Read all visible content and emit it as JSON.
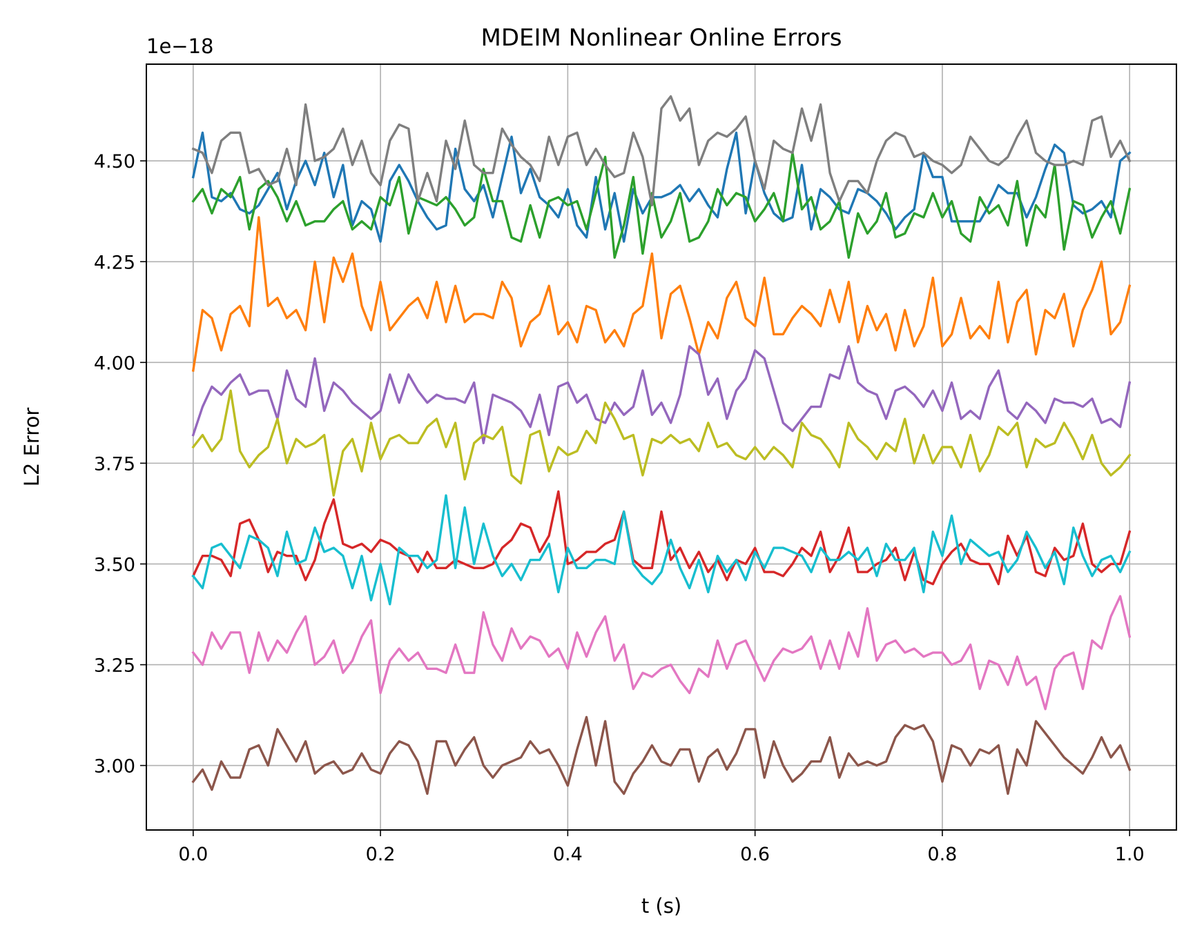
{
  "chart_data": {
    "type": "line",
    "title": "MDEIM Nonlinear Online Errors",
    "xlabel": "t (s)",
    "ylabel": "L2 Error",
    "y_offset_label": "1e−18",
    "xlim": [
      -0.05,
      1.05
    ],
    "ylim": [
      2.84,
      4.74
    ],
    "xticks": [
      0.0,
      0.2,
      0.4,
      0.6,
      0.8,
      1.0
    ],
    "xtick_labels": [
      "0.0",
      "0.2",
      "0.4",
      "0.6",
      "0.8",
      "1.0"
    ],
    "yticks": [
      3.0,
      3.25,
      3.5,
      3.75,
      4.0,
      4.25,
      4.5
    ],
    "ytick_labels": [
      "3.00",
      "3.25",
      "3.50",
      "3.75",
      "4.00",
      "4.25",
      "4.50"
    ],
    "grid": true,
    "x": [
      0.0,
      0.01,
      0.02,
      0.03,
      0.04,
      0.05,
      0.06,
      0.07,
      0.08,
      0.09,
      0.1,
      0.11,
      0.12,
      0.13,
      0.14,
      0.15,
      0.16,
      0.17,
      0.18,
      0.19,
      0.2,
      0.21,
      0.22,
      0.23,
      0.24,
      0.25,
      0.26,
      0.27,
      0.28,
      0.29,
      0.3,
      0.31,
      0.32,
      0.33,
      0.34,
      0.35,
      0.36,
      0.37,
      0.38,
      0.39,
      0.4,
      0.41,
      0.42,
      0.43,
      0.44,
      0.45,
      0.46,
      0.47,
      0.48,
      0.49,
      0.5,
      0.51,
      0.52,
      0.53,
      0.54,
      0.55,
      0.56,
      0.57,
      0.58,
      0.59,
      0.6,
      0.61,
      0.62,
      0.63,
      0.64,
      0.65,
      0.66,
      0.67,
      0.68,
      0.69,
      0.7,
      0.71,
      0.72,
      0.73,
      0.74,
      0.75,
      0.76,
      0.77,
      0.78,
      0.79,
      0.8,
      0.81,
      0.82,
      0.83,
      0.84,
      0.85,
      0.86,
      0.87,
      0.88,
      0.89,
      0.9,
      0.91,
      0.92,
      0.93,
      0.94,
      0.95,
      0.96,
      0.97,
      0.98,
      0.99,
      1.0
    ],
    "series": [
      {
        "color": "#1f77b4",
        "values": [
          4.46,
          4.57,
          4.41,
          4.4,
          4.42,
          4.38,
          4.37,
          4.39,
          4.43,
          4.47,
          4.38,
          4.45,
          4.5,
          4.44,
          4.52,
          4.41,
          4.49,
          4.34,
          4.4,
          4.38,
          4.3,
          4.45,
          4.49,
          4.45,
          4.4,
          4.36,
          4.33,
          4.34,
          4.53,
          4.43,
          4.4,
          4.44,
          4.36,
          4.46,
          4.56,
          4.42,
          4.48,
          4.41,
          4.39,
          4.36,
          4.43,
          4.34,
          4.31,
          4.46,
          4.33,
          4.42,
          4.3,
          4.43,
          4.37,
          4.41,
          4.41,
          4.42,
          4.44,
          4.4,
          4.43,
          4.39,
          4.36,
          4.48,
          4.57,
          4.37,
          4.5,
          4.42,
          4.37,
          4.35,
          4.36,
          4.49,
          4.33,
          4.43,
          4.41,
          4.38,
          4.37,
          4.43,
          4.42,
          4.4,
          4.37,
          4.33,
          4.36,
          4.38,
          4.52,
          4.46,
          4.46,
          4.35,
          4.35,
          4.35,
          4.35,
          4.39,
          4.44,
          4.42,
          4.42,
          4.36,
          4.41,
          4.48,
          4.54,
          4.52,
          4.39,
          4.37,
          4.38,
          4.4,
          4.36,
          4.5,
          4.52
        ]
      },
      {
        "color": "#ff7f0e",
        "values": [
          3.98,
          4.13,
          4.11,
          4.03,
          4.12,
          4.14,
          4.09,
          4.36,
          4.14,
          4.16,
          4.11,
          4.13,
          4.08,
          4.25,
          4.1,
          4.26,
          4.2,
          4.27,
          4.14,
          4.08,
          4.2,
          4.08,
          4.11,
          4.14,
          4.16,
          4.11,
          4.2,
          4.1,
          4.19,
          4.1,
          4.12,
          4.12,
          4.11,
          4.2,
          4.16,
          4.04,
          4.1,
          4.12,
          4.19,
          4.07,
          4.1,
          4.05,
          4.14,
          4.13,
          4.05,
          4.08,
          4.04,
          4.12,
          4.14,
          4.27,
          4.06,
          4.17,
          4.19,
          4.11,
          4.02,
          4.1,
          4.06,
          4.16,
          4.2,
          4.11,
          4.09,
          4.21,
          4.07,
          4.07,
          4.11,
          4.14,
          4.12,
          4.09,
          4.18,
          4.1,
          4.2,
          4.05,
          4.14,
          4.08,
          4.12,
          4.03,
          4.13,
          4.04,
          4.09,
          4.21,
          4.04,
          4.07,
          4.16,
          4.06,
          4.09,
          4.06,
          4.2,
          4.05,
          4.15,
          4.18,
          4.02,
          4.13,
          4.11,
          4.17,
          4.04,
          4.13,
          4.18,
          4.25,
          4.07,
          4.1,
          4.19
        ]
      },
      {
        "color": "#2ca02c",
        "values": [
          4.4,
          4.43,
          4.37,
          4.43,
          4.41,
          4.46,
          4.33,
          4.43,
          4.45,
          4.41,
          4.35,
          4.4,
          4.34,
          4.35,
          4.35,
          4.38,
          4.4,
          4.33,
          4.35,
          4.33,
          4.41,
          4.39,
          4.46,
          4.32,
          4.41,
          4.4,
          4.39,
          4.41,
          4.38,
          4.34,
          4.36,
          4.48,
          4.4,
          4.4,
          4.31,
          4.3,
          4.39,
          4.31,
          4.4,
          4.41,
          4.39,
          4.4,
          4.33,
          4.42,
          4.51,
          4.26,
          4.34,
          4.46,
          4.27,
          4.42,
          4.31,
          4.35,
          4.42,
          4.3,
          4.31,
          4.35,
          4.43,
          4.39,
          4.42,
          4.41,
          4.35,
          4.38,
          4.42,
          4.35,
          4.52,
          4.38,
          4.41,
          4.33,
          4.35,
          4.4,
          4.26,
          4.37,
          4.32,
          4.35,
          4.42,
          4.31,
          4.32,
          4.37,
          4.36,
          4.42,
          4.36,
          4.4,
          4.32,
          4.3,
          4.41,
          4.37,
          4.39,
          4.34,
          4.45,
          4.29,
          4.39,
          4.36,
          4.49,
          4.28,
          4.4,
          4.39,
          4.31,
          4.36,
          4.4,
          4.32,
          4.43
        ]
      },
      {
        "color": "#d62728",
        "values": [
          3.47,
          3.52,
          3.52,
          3.51,
          3.47,
          3.6,
          3.61,
          3.56,
          3.48,
          3.53,
          3.52,
          3.52,
          3.46,
          3.51,
          3.6,
          3.66,
          3.55,
          3.54,
          3.55,
          3.53,
          3.56,
          3.55,
          3.53,
          3.52,
          3.48,
          3.53,
          3.49,
          3.49,
          3.51,
          3.5,
          3.49,
          3.49,
          3.5,
          3.54,
          3.56,
          3.6,
          3.59,
          3.53,
          3.57,
          3.68,
          3.5,
          3.51,
          3.53,
          3.53,
          3.55,
          3.56,
          3.63,
          3.51,
          3.49,
          3.49,
          3.63,
          3.51,
          3.54,
          3.49,
          3.53,
          3.48,
          3.51,
          3.46,
          3.51,
          3.5,
          3.54,
          3.48,
          3.48,
          3.47,
          3.5,
          3.54,
          3.52,
          3.58,
          3.48,
          3.52,
          3.59,
          3.48,
          3.48,
          3.5,
          3.51,
          3.54,
          3.46,
          3.53,
          3.46,
          3.45,
          3.5,
          3.53,
          3.55,
          3.51,
          3.5,
          3.5,
          3.45,
          3.57,
          3.52,
          3.57,
          3.48,
          3.47,
          3.54,
          3.51,
          3.52,
          3.6,
          3.5,
          3.48,
          3.5,
          3.5,
          3.58
        ]
      },
      {
        "color": "#9467bd",
        "values": [
          3.82,
          3.89,
          3.94,
          3.92,
          3.95,
          3.97,
          3.92,
          3.93,
          3.93,
          3.86,
          3.98,
          3.91,
          3.89,
          4.01,
          3.88,
          3.95,
          3.93,
          3.9,
          3.88,
          3.86,
          3.88,
          3.97,
          3.9,
          3.97,
          3.93,
          3.9,
          3.92,
          3.91,
          3.91,
          3.9,
          3.95,
          3.8,
          3.92,
          3.91,
          3.9,
          3.88,
          3.84,
          3.92,
          3.82,
          3.94,
          3.95,
          3.9,
          3.92,
          3.86,
          3.85,
          3.9,
          3.87,
          3.89,
          3.98,
          3.87,
          3.9,
          3.85,
          3.92,
          4.04,
          4.02,
          3.92,
          3.96,
          3.86,
          3.93,
          3.96,
          4.03,
          4.01,
          3.93,
          3.85,
          3.83,
          3.86,
          3.89,
          3.89,
          3.97,
          3.96,
          4.04,
          3.95,
          3.93,
          3.92,
          3.86,
          3.93,
          3.94,
          3.92,
          3.89,
          3.93,
          3.88,
          3.95,
          3.86,
          3.88,
          3.86,
          3.94,
          3.98,
          3.88,
          3.86,
          3.9,
          3.88,
          3.85,
          3.91,
          3.9,
          3.9,
          3.89,
          3.91,
          3.85,
          3.86,
          3.84,
          3.95
        ]
      },
      {
        "color": "#8c564b",
        "values": [
          2.96,
          2.99,
          2.94,
          3.01,
          2.97,
          2.97,
          3.04,
          3.05,
          3.0,
          3.09,
          3.05,
          3.01,
          3.06,
          2.98,
          3.0,
          3.01,
          2.98,
          2.99,
          3.03,
          2.99,
          2.98,
          3.03,
          3.06,
          3.05,
          3.01,
          2.93,
          3.06,
          3.06,
          3.0,
          3.04,
          3.07,
          3.0,
          2.97,
          3.0,
          3.01,
          3.02,
          3.06,
          3.03,
          3.04,
          3.0,
          2.95,
          3.04,
          3.12,
          3.0,
          3.11,
          2.96,
          2.93,
          2.98,
          3.01,
          3.05,
          3.01,
          3.0,
          3.04,
          3.04,
          2.96,
          3.02,
          3.04,
          2.99,
          3.03,
          3.09,
          3.09,
          2.97,
          3.06,
          3.0,
          2.96,
          2.98,
          3.01,
          3.01,
          3.07,
          2.97,
          3.03,
          3.0,
          3.01,
          3.0,
          3.01,
          3.07,
          3.1,
          3.09,
          3.1,
          3.06,
          2.96,
          3.05,
          3.04,
          3.0,
          3.04,
          3.03,
          3.05,
          2.93,
          3.04,
          3.0,
          3.11,
          3.08,
          3.05,
          3.02,
          3.0,
          2.98,
          3.02,
          3.07,
          3.02,
          3.05,
          2.99
        ]
      },
      {
        "color": "#e377c2",
        "values": [
          3.28,
          3.25,
          3.33,
          3.29,
          3.33,
          3.33,
          3.23,
          3.33,
          3.26,
          3.31,
          3.28,
          3.33,
          3.37,
          3.25,
          3.27,
          3.31,
          3.23,
          3.26,
          3.32,
          3.36,
          3.18,
          3.26,
          3.29,
          3.26,
          3.28,
          3.24,
          3.24,
          3.23,
          3.3,
          3.23,
          3.23,
          3.38,
          3.3,
          3.26,
          3.34,
          3.29,
          3.32,
          3.31,
          3.27,
          3.29,
          3.24,
          3.33,
          3.27,
          3.33,
          3.37,
          3.26,
          3.3,
          3.19,
          3.23,
          3.22,
          3.24,
          3.25,
          3.21,
          3.18,
          3.24,
          3.22,
          3.31,
          3.24,
          3.3,
          3.31,
          3.26,
          3.21,
          3.26,
          3.29,
          3.28,
          3.29,
          3.32,
          3.24,
          3.31,
          3.24,
          3.33,
          3.27,
          3.39,
          3.26,
          3.3,
          3.31,
          3.28,
          3.29,
          3.27,
          3.28,
          3.28,
          3.25,
          3.26,
          3.3,
          3.19,
          3.26,
          3.25,
          3.2,
          3.27,
          3.2,
          3.22,
          3.14,
          3.24,
          3.27,
          3.28,
          3.19,
          3.31,
          3.29,
          3.37,
          3.42,
          3.32
        ]
      },
      {
        "color": "#7f7f7f",
        "values": [
          4.53,
          4.52,
          4.47,
          4.55,
          4.57,
          4.57,
          4.47,
          4.48,
          4.44,
          4.45,
          4.53,
          4.44,
          4.64,
          4.5,
          4.51,
          4.53,
          4.58,
          4.49,
          4.55,
          4.47,
          4.44,
          4.55,
          4.59,
          4.58,
          4.4,
          4.47,
          4.4,
          4.55,
          4.48,
          4.6,
          4.49,
          4.47,
          4.47,
          4.58,
          4.54,
          4.51,
          4.49,
          4.45,
          4.56,
          4.49,
          4.56,
          4.57,
          4.49,
          4.53,
          4.49,
          4.46,
          4.47,
          4.57,
          4.51,
          4.39,
          4.63,
          4.66,
          4.6,
          4.63,
          4.49,
          4.55,
          4.57,
          4.56,
          4.58,
          4.61,
          4.5,
          4.43,
          4.55,
          4.53,
          4.52,
          4.63,
          4.55,
          4.64,
          4.47,
          4.4,
          4.45,
          4.45,
          4.42,
          4.5,
          4.55,
          4.57,
          4.56,
          4.51,
          4.52,
          4.5,
          4.49,
          4.47,
          4.49,
          4.56,
          4.53,
          4.5,
          4.49,
          4.51,
          4.56,
          4.6,
          4.52,
          4.5,
          4.49,
          4.49,
          4.5,
          4.49,
          4.6,
          4.61,
          4.51,
          4.55,
          4.5
        ]
      },
      {
        "color": "#bcbd22",
        "values": [
          3.79,
          3.82,
          3.78,
          3.81,
          3.93,
          3.78,
          3.74,
          3.77,
          3.79,
          3.86,
          3.75,
          3.81,
          3.79,
          3.8,
          3.82,
          3.67,
          3.78,
          3.81,
          3.73,
          3.85,
          3.76,
          3.81,
          3.82,
          3.8,
          3.8,
          3.84,
          3.86,
          3.79,
          3.85,
          3.71,
          3.8,
          3.82,
          3.81,
          3.84,
          3.72,
          3.7,
          3.82,
          3.83,
          3.73,
          3.79,
          3.77,
          3.78,
          3.83,
          3.8,
          3.9,
          3.86,
          3.81,
          3.82,
          3.72,
          3.81,
          3.8,
          3.82,
          3.8,
          3.81,
          3.78,
          3.85,
          3.79,
          3.8,
          3.77,
          3.76,
          3.79,
          3.76,
          3.79,
          3.77,
          3.74,
          3.85,
          3.82,
          3.81,
          3.78,
          3.74,
          3.85,
          3.81,
          3.79,
          3.76,
          3.8,
          3.78,
          3.86,
          3.75,
          3.82,
          3.75,
          3.79,
          3.79,
          3.74,
          3.82,
          3.73,
          3.77,
          3.84,
          3.82,
          3.85,
          3.74,
          3.81,
          3.79,
          3.8,
          3.85,
          3.81,
          3.76,
          3.82,
          3.75,
          3.72,
          3.74,
          3.77
        ]
      },
      {
        "color": "#17becf",
        "values": [
          3.47,
          3.44,
          3.54,
          3.55,
          3.52,
          3.49,
          3.57,
          3.56,
          3.54,
          3.47,
          3.58,
          3.5,
          3.51,
          3.59,
          3.53,
          3.54,
          3.52,
          3.44,
          3.52,
          3.41,
          3.5,
          3.4,
          3.54,
          3.52,
          3.52,
          3.49,
          3.51,
          3.67,
          3.49,
          3.64,
          3.5,
          3.6,
          3.52,
          3.47,
          3.5,
          3.46,
          3.51,
          3.51,
          3.55,
          3.43,
          3.54,
          3.49,
          3.49,
          3.51,
          3.51,
          3.5,
          3.63,
          3.5,
          3.47,
          3.45,
          3.48,
          3.56,
          3.49,
          3.44,
          3.51,
          3.43,
          3.52,
          3.48,
          3.51,
          3.46,
          3.53,
          3.49,
          3.54,
          3.54,
          3.53,
          3.52,
          3.48,
          3.54,
          3.51,
          3.51,
          3.53,
          3.51,
          3.54,
          3.47,
          3.55,
          3.51,
          3.51,
          3.54,
          3.43,
          3.58,
          3.52,
          3.62,
          3.5,
          3.56,
          3.54,
          3.52,
          3.53,
          3.48,
          3.51,
          3.58,
          3.54,
          3.49,
          3.53,
          3.45,
          3.59,
          3.52,
          3.47,
          3.51,
          3.52,
          3.48,
          3.53
        ]
      }
    ]
  }
}
